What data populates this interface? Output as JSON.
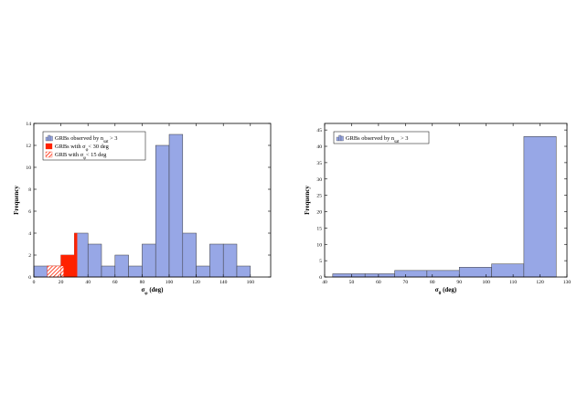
{
  "chart_data": [
    {
      "type": "bar",
      "histogram": true,
      "xlabel_base": "σ",
      "xlabel_sub": "φ",
      "xlabel_unit": "(deg)",
      "ylabel": "Frequency",
      "xlim": [
        0,
        175
      ],
      "ylim": [
        0,
        14
      ],
      "xticks": [
        0,
        20,
        40,
        60,
        80,
        100,
        120,
        140,
        160
      ],
      "yticks": [
        0,
        2,
        4,
        6,
        8,
        10,
        12,
        14
      ],
      "series": [
        {
          "name": "GRBs observed by n_sat > 3",
          "color": "#97a7e6",
          "bins": [
            [
              0,
              10,
              1
            ],
            [
              10,
              20,
              1
            ],
            [
              20,
              30,
              2
            ],
            [
              30,
              40,
              4
            ],
            [
              40,
              50,
              3
            ],
            [
              50,
              60,
              1
            ],
            [
              60,
              70,
              2
            ],
            [
              70,
              80,
              1
            ],
            [
              80,
              90,
              3
            ],
            [
              90,
              100,
              12
            ],
            [
              100,
              110,
              13
            ],
            [
              110,
              120,
              4
            ],
            [
              120,
              130,
              1
            ],
            [
              130,
              140,
              3
            ],
            [
              140,
              150,
              3
            ],
            [
              150,
              160,
              1
            ]
          ]
        },
        {
          "name": "GRBs with σ_φ < 30 deg",
          "color": "#ff2200",
          "bins": [
            [
              10,
              20,
              1
            ],
            [
              20,
              30,
              2
            ],
            [
              30,
              32,
              4
            ]
          ]
        },
        {
          "name": "GRB with σ_φ < 15 deg",
          "color": "#ff2200",
          "hatched": true,
          "bins": [
            [
              10,
              20,
              1
            ],
            [
              20,
              22,
              1
            ]
          ]
        }
      ],
      "legend": {
        "placement": "top-left",
        "entries": [
          {
            "label": "GRBs observed by n",
            "sub": "sat",
            "suffix": " > 3",
            "style": "hist"
          },
          {
            "label": "GRBs with σ",
            "sub": "φ",
            "suffix": "< 30 deg",
            "style": "solid"
          },
          {
            "label": "GRB with σ",
            "sub": "φ",
            "suffix": "< 15 deg",
            "style": "hatch"
          }
        ]
      }
    },
    {
      "type": "bar",
      "histogram": true,
      "xlabel_base": "σ",
      "xlabel_sub": "θ",
      "xlabel_unit": "(deg)",
      "ylabel": "Frequency",
      "xlim": [
        40,
        130
      ],
      "ylim": [
        0,
        47
      ],
      "xticks": [
        40,
        50,
        60,
        70,
        80,
        90,
        100,
        110,
        120,
        130
      ],
      "yticks": [
        0,
        5,
        10,
        15,
        20,
        25,
        30,
        35,
        40,
        45
      ],
      "series": [
        {
          "name": "GRBs observed by n_sat > 3",
          "color": "#97a7e6",
          "bins": [
            [
              43,
              55,
              1
            ],
            [
              55,
              66,
              1
            ],
            [
              66,
              78,
              2
            ],
            [
              78,
              90,
              2
            ],
            [
              90,
              102,
              3
            ],
            [
              102,
              114,
              4
            ],
            [
              114,
              126,
              43
            ]
          ]
        }
      ],
      "legend": {
        "placement": "top-left",
        "entries": [
          {
            "label": "GRBs observed by n",
            "sub": "sat",
            "suffix": " > 3",
            "style": "hist"
          }
        ]
      }
    }
  ]
}
